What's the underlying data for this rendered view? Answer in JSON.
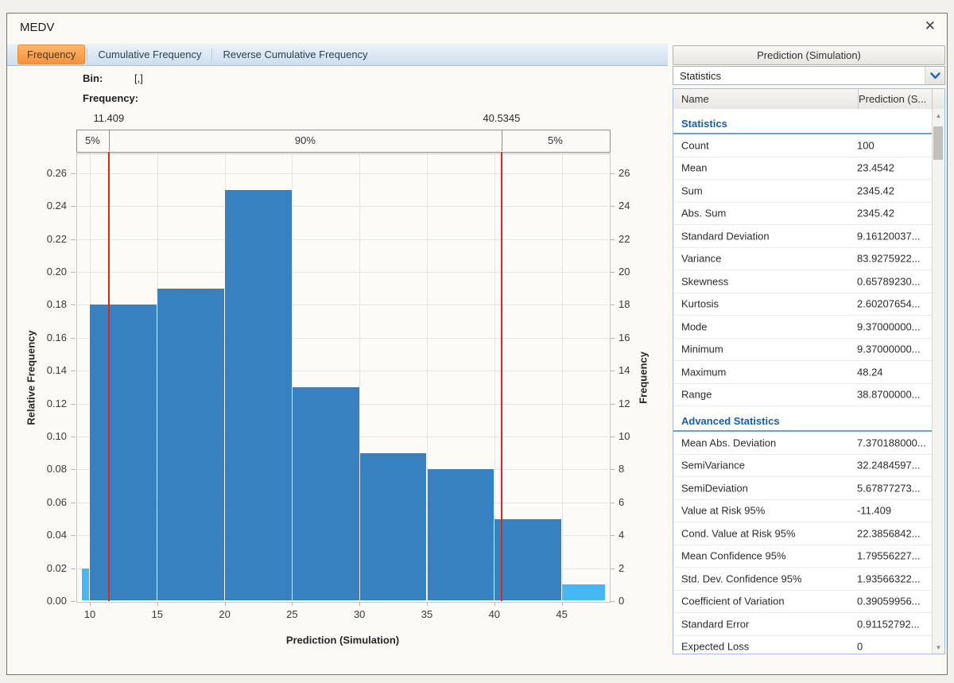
{
  "window": {
    "title": "MEDV"
  },
  "icons": {
    "close": "✕",
    "scroll_up": "▲",
    "scroll_down": "▼"
  },
  "tabs": [
    {
      "label": "Frequency",
      "active": true
    },
    {
      "label": "Cumulative Frequency",
      "active": false
    },
    {
      "label": "Reverse Cumulative Frequency",
      "active": false
    }
  ],
  "tooltip": {
    "bin_label": "Bin:",
    "bin_value": "[,]",
    "freq_label": "Frequency:",
    "freq_value": ""
  },
  "chart_data": {
    "type": "bar",
    "title": "",
    "xlabel": "Prediction (Simulation)",
    "ylabel_left": "Relative Frequency",
    "ylabel_right": "Frequency",
    "x_domain": [
      9.0,
      48.5
    ],
    "y_domain": [
      0,
      0.272
    ],
    "grid": true,
    "x_ticks": [
      10,
      15,
      20,
      25,
      30,
      35,
      40,
      45
    ],
    "y_ticks_left": [
      "0.00",
      "0.02",
      "0.04",
      "0.06",
      "0.08",
      "0.10",
      "0.12",
      "0.14",
      "0.16",
      "0.18",
      "0.20",
      "0.22",
      "0.24",
      "0.26"
    ],
    "y_ticks_right": [
      0,
      2,
      4,
      6,
      8,
      10,
      12,
      14,
      16,
      18,
      20,
      22,
      24,
      26
    ],
    "bins": [
      {
        "x0": 9.37,
        "x1": 10,
        "count": 2,
        "rel": 0.02,
        "tail": true
      },
      {
        "x0": 10,
        "x1": 15,
        "count": 18,
        "rel": 0.18,
        "tail": false
      },
      {
        "x0": 15,
        "x1": 20,
        "count": 19,
        "rel": 0.19,
        "tail": false
      },
      {
        "x0": 20,
        "x1": 25,
        "count": 25,
        "rel": 0.25,
        "tail": false
      },
      {
        "x0": 25,
        "x1": 30,
        "count": 13,
        "rel": 0.13,
        "tail": false
      },
      {
        "x0": 30,
        "x1": 35,
        "count": 9,
        "rel": 0.09,
        "tail": false
      },
      {
        "x0": 35,
        "x1": 40,
        "count": 8,
        "rel": 0.08,
        "tail": false
      },
      {
        "x0": 40,
        "x1": 45,
        "count": 5,
        "rel": 0.05,
        "tail": false
      },
      {
        "x0": 45,
        "x1": 48.24,
        "count": 1,
        "rel": 0.01,
        "tail": true
      }
    ],
    "markers": [
      {
        "value": 11.409,
        "label": "11.409"
      },
      {
        "value": 40.5345,
        "label": "40.5345"
      }
    ],
    "band_segments": [
      "5%",
      "90%",
      "5%"
    ],
    "legend": null,
    "colors": {
      "bar": "#3781c1",
      "tail_bar": "#47b7f3",
      "marker_line": "#dc271c"
    }
  },
  "panel": {
    "header": "Prediction (Simulation)",
    "dropdown": {
      "value": "Statistics"
    },
    "table": {
      "columns": [
        "Name",
        "Prediction (S..."
      ],
      "sections": [
        {
          "title": "Statistics",
          "rows": [
            [
              "Count",
              "100"
            ],
            [
              "Mean",
              "23.4542"
            ],
            [
              "Sum",
              "2345.42"
            ],
            [
              "Abs. Sum",
              "2345.42"
            ],
            [
              "Standard Deviation",
              "9.16120037..."
            ],
            [
              "Variance",
              "83.9275922..."
            ],
            [
              "Skewness",
              "0.65789230..."
            ],
            [
              "Kurtosis",
              "2.60207654..."
            ],
            [
              "Mode",
              "9.37000000..."
            ],
            [
              "Minimum",
              "9.37000000..."
            ],
            [
              "Maximum",
              "48.24"
            ],
            [
              "Range",
              "38.8700000..."
            ]
          ]
        },
        {
          "title": "Advanced Statistics",
          "rows": [
            [
              "Mean Abs. Deviation",
              "7.370188000..."
            ],
            [
              "SemiVariance",
              "32.2484597..."
            ],
            [
              "SemiDeviation",
              "5.67877273..."
            ],
            [
              "Value at Risk 95%",
              "-11.409"
            ],
            [
              "Cond. Value at Risk 95%",
              "22.3856842..."
            ],
            [
              "Mean Confidence 95%",
              "1.79556227..."
            ],
            [
              "Std. Dev. Confidence 95%",
              "1.93566322..."
            ],
            [
              "Coefficient of Variation",
              "0.39059956..."
            ],
            [
              "Standard Error",
              "0.91152792..."
            ],
            [
              "Expected Loss",
              "0"
            ]
          ]
        }
      ]
    }
  }
}
